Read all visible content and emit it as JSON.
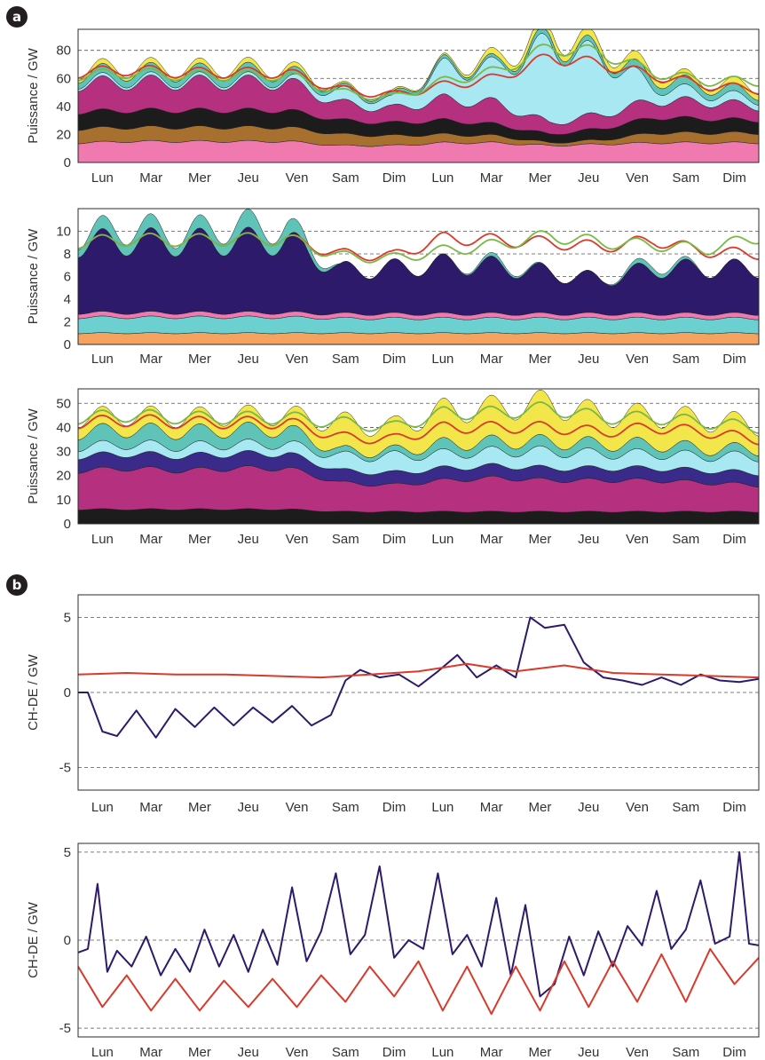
{
  "figure": {
    "panel_a_label": "a",
    "panel_b_label": "b"
  },
  "day_labels": [
    "Lun",
    "Mar",
    "Mer",
    "Jeu",
    "Ven",
    "Sam",
    "Dim",
    "Lun",
    "Mar",
    "Mer",
    "Jeu",
    "Ven",
    "Sam",
    "Dim"
  ],
  "chart_data": [
    {
      "id": "a1",
      "type": "area",
      "ylabel": "Puissance / GW",
      "ylim": [
        0,
        95
      ],
      "yticks": [
        0,
        20,
        40,
        60,
        80
      ],
      "xlim": [
        0,
        14
      ],
      "grid": "horizontal dashed",
      "stack_colors": [
        "#f07ab0",
        "#a8702e",
        "#1c1c1c",
        "#b5307e",
        "#a8e8f2",
        "#5fc3b8",
        "#f2e64a"
      ],
      "stack": [
        {
          "color": "#f07ab0",
          "values": [
            14,
            15,
            15,
            15,
            15,
            12,
            12,
            14,
            14,
            12,
            13,
            14,
            14,
            14
          ]
        },
        {
          "color": "#a8702e",
          "values": [
            10,
            10,
            10,
            10,
            10,
            8,
            7,
            6,
            5,
            2,
            3,
            7,
            7,
            7
          ]
        },
        {
          "color": "#1c1c1c",
          "values": [
            12,
            12,
            12,
            12,
            12,
            10,
            9,
            10,
            8,
            6,
            8,
            11,
            10,
            9
          ]
        },
        {
          "color": "#b5307e",
          "values": [
            20,
            20,
            20,
            20,
            20,
            12,
            10,
            15,
            15,
            8,
            10,
            12,
            12,
            10
          ]
        },
        {
          "color": "#a8e8f2",
          "values": [
            2,
            2,
            2,
            2,
            2,
            8,
            6,
            22,
            25,
            55,
            40,
            10,
            6,
            5
          ]
        },
        {
          "color": "#5fc3b8",
          "values": [
            5,
            6,
            5,
            6,
            5,
            2,
            2,
            2,
            2,
            4,
            3,
            6,
            5,
            4
          ]
        },
        {
          "color": "#f2e64a",
          "values": [
            3,
            3,
            3,
            3,
            3,
            1,
            1,
            1,
            4,
            6,
            5,
            5,
            3,
            5
          ]
        }
      ],
      "lines": [
        {
          "color": "#d93a2b",
          "values": [
            64,
            66,
            64,
            64,
            64,
            52,
            48,
            55,
            60,
            75,
            70,
            62,
            55,
            52
          ]
        },
        {
          "color": "#7bb848",
          "values": [
            62,
            64,
            62,
            62,
            62,
            50,
            46,
            58,
            65,
            82,
            78,
            64,
            58,
            58
          ]
        }
      ]
    },
    {
      "id": "a2",
      "type": "area",
      "ylabel": "Puissance / GW",
      "ylim": [
        0,
        12
      ],
      "yticks": [
        0,
        2,
        4,
        6,
        8,
        10
      ],
      "xlim": [
        0,
        14
      ],
      "grid": "horizontal dashed",
      "stack": [
        {
          "color": "#f4a460",
          "values": [
            1,
            1,
            1,
            1,
            1,
            1,
            1,
            1,
            1,
            1,
            1,
            1,
            1,
            1
          ]
        },
        {
          "color": "#6ccfd0",
          "values": [
            1.4,
            1.4,
            1.4,
            1.4,
            1.4,
            1.3,
            1.3,
            1.3,
            1.3,
            1.3,
            1.3,
            1.3,
            1.3,
            1.3
          ]
        },
        {
          "color": "#f07ab0",
          "values": [
            0.4,
            0.4,
            0.4,
            0.4,
            0.4,
            0.4,
            0.4,
            0.4,
            0.4,
            0.4,
            0.4,
            0.4,
            0.4,
            0.4
          ]
        },
        {
          "color": "#2e1a6b",
          "values": [
            6.1,
            6.3,
            6.2,
            6.3,
            6.3,
            3.8,
            4,
            4.4,
            4.2,
            3.6,
            3,
            4,
            4,
            4
          ]
        },
        {
          "color": "#5fc3b8",
          "values": [
            0.8,
            1.2,
            0.8,
            1.4,
            1.2,
            0,
            0,
            0,
            0.3,
            0,
            0,
            0.5,
            0,
            0
          ]
        }
      ],
      "lines": [
        {
          "color": "#d93a2b",
          "values": [
            9,
            9.3,
            9.2,
            9.3,
            9.3,
            8.0,
            7.8,
            9.4,
            9.2,
            9.0,
            8.6,
            9.2,
            8.2,
            8.0
          ]
        },
        {
          "color": "#7bb848",
          "values": [
            9,
            9.3,
            9.2,
            9.3,
            9.3,
            7.8,
            7.6,
            8.3,
            8.8,
            9.6,
            9.0,
            8.8,
            8.4,
            9.5
          ]
        }
      ]
    },
    {
      "id": "a3",
      "type": "area",
      "ylabel": "Puissance / GW",
      "ylim": [
        0,
        56
      ],
      "yticks": [
        0,
        10,
        20,
        30,
        40,
        50
      ],
      "xlim": [
        0,
        14
      ],
      "grid": "horizontal dashed",
      "stack": [
        {
          "color": "#1c1c1c",
          "values": [
            6,
            6,
            6,
            6,
            6,
            5,
            5,
            5,
            5,
            5,
            5,
            5,
            5,
            5
          ]
        },
        {
          "color": "#b5307e",
          "values": [
            16,
            17,
            16,
            17,
            17,
            12,
            11,
            13,
            14,
            13,
            13,
            13,
            12,
            11
          ]
        },
        {
          "color": "#3a2a8a",
          "values": [
            6,
            6,
            6,
            6,
            6,
            5,
            5,
            5,
            5,
            5,
            5,
            5,
            5,
            5
          ]
        },
        {
          "color": "#a8e8f2",
          "values": [
            4,
            4,
            4,
            4,
            4,
            6,
            7,
            6,
            6,
            7,
            6,
            6,
            6,
            7
          ]
        },
        {
          "color": "#5fc3b8",
          "values": [
            6,
            6,
            6,
            6,
            6,
            2,
            2,
            4,
            4,
            4,
            4,
            4,
            3,
            3
          ]
        },
        {
          "color": "#f2e64a",
          "values": [
            6,
            6,
            6,
            6,
            6,
            12,
            10,
            14,
            14,
            16,
            12,
            12,
            12,
            10
          ]
        }
      ],
      "lines": [
        {
          "color": "#d93a2b",
          "values": [
            42,
            43,
            42,
            42,
            42,
            36,
            35,
            40,
            40,
            40,
            38,
            40,
            38,
            35
          ]
        },
        {
          "color": "#7bb848",
          "values": [
            44,
            45,
            44,
            44,
            44,
            42,
            40,
            46,
            46,
            48,
            44,
            44,
            42,
            40
          ]
        }
      ]
    },
    {
      "id": "b1",
      "type": "line",
      "ylabel": "CH-DE / GW",
      "ylim": [
        -6.5,
        6.5
      ],
      "yticks": [
        -5,
        0,
        5
      ],
      "xlim": [
        0,
        14
      ],
      "grid": "horizontal dashed",
      "series": [
        {
          "color": "#2e1a6b",
          "x": [
            0,
            0.2,
            0.5,
            0.8,
            1.2,
            1.6,
            2.0,
            2.4,
            2.8,
            3.2,
            3.6,
            4.0,
            4.4,
            4.8,
            5.2,
            5.5,
            5.8,
            6.2,
            6.6,
            7.0,
            7.4,
            7.8,
            8.2,
            8.6,
            9.0,
            9.3,
            9.6,
            10.0,
            10.4,
            10.8,
            11.2,
            11.6,
            12.0,
            12.4,
            12.8,
            13.2,
            13.6,
            14.0
          ],
          "y": [
            0,
            0,
            -2.6,
            -2.9,
            -1.2,
            -3.0,
            -1.1,
            -2.3,
            -1.0,
            -2.2,
            -1.0,
            -2.0,
            -0.9,
            -2.2,
            -1.5,
            0.8,
            1.5,
            1.0,
            1.2,
            0.4,
            1.4,
            2.5,
            1.0,
            1.8,
            1.0,
            5.0,
            4.3,
            4.5,
            2.0,
            1.0,
            0.8,
            0.5,
            1.0,
            0.5,
            1.2,
            0.8,
            0.7,
            0.9
          ]
        },
        {
          "color": "#d93a2b",
          "x": [
            0,
            1,
            2,
            3,
            4,
            5,
            6,
            7,
            8,
            9,
            10,
            11,
            12,
            13,
            14
          ],
          "y": [
            1.2,
            1.3,
            1.2,
            1.2,
            1.1,
            1.0,
            1.2,
            1.4,
            1.9,
            1.4,
            1.8,
            1.3,
            1.2,
            1.1,
            1.0
          ]
        }
      ]
    },
    {
      "id": "b2",
      "type": "line",
      "ylabel": "CH-DE / GW",
      "ylim": [
        -5.5,
        5.5
      ],
      "yticks": [
        -5,
        0,
        5
      ],
      "xlim": [
        0,
        14
      ],
      "grid": "horizontal dashed",
      "series": [
        {
          "color": "#2e1a6b",
          "x": [
            0,
            0.2,
            0.4,
            0.6,
            0.8,
            1.1,
            1.4,
            1.7,
            2.0,
            2.3,
            2.6,
            2.9,
            3.2,
            3.5,
            3.8,
            4.1,
            4.4,
            4.7,
            5.0,
            5.3,
            5.6,
            5.9,
            6.2,
            6.5,
            6.8,
            7.1,
            7.4,
            7.7,
            8.0,
            8.3,
            8.6,
            8.9,
            9.2,
            9.5,
            9.8,
            10.1,
            10.4,
            10.7,
            11.0,
            11.3,
            11.6,
            11.9,
            12.2,
            12.5,
            12.8,
            13.1,
            13.4,
            13.6,
            13.8,
            14.0
          ],
          "y": [
            -0.7,
            -0.5,
            3.2,
            -1.8,
            -0.6,
            -1.5,
            0.2,
            -2.0,
            -0.5,
            -1.8,
            0.6,
            -1.5,
            0.3,
            -1.8,
            0.6,
            -1.4,
            3.0,
            -1.2,
            0.5,
            3.8,
            -0.8,
            0.3,
            4.2,
            -1.0,
            0.0,
            -0.5,
            3.8,
            -0.8,
            0.3,
            -1.5,
            2.4,
            -2.0,
            2.0,
            -3.2,
            -2.5,
            0.2,
            -2.0,
            0.5,
            -1.5,
            0.8,
            -0.3,
            2.8,
            -0.5,
            0.6,
            3.4,
            -0.2,
            0.2,
            5.0,
            -0.2,
            -0.3
          ]
        },
        {
          "color": "#d93a2b",
          "x": [
            0,
            0.5,
            1.0,
            1.5,
            2.0,
            2.5,
            3.0,
            3.5,
            4.0,
            4.5,
            5.0,
            5.5,
            6.0,
            6.5,
            7.0,
            7.5,
            8.0,
            8.5,
            9.0,
            9.5,
            10.0,
            10.5,
            11.0,
            11.5,
            12.0,
            12.5,
            13.0,
            13.5,
            14.0
          ],
          "y": [
            -1.5,
            -3.8,
            -2.0,
            -4.0,
            -2.2,
            -4.0,
            -2.3,
            -3.8,
            -2.2,
            -3.8,
            -2.0,
            -3.5,
            -1.5,
            -3.2,
            -1.2,
            -4.0,
            -1.5,
            -4.2,
            -1.5,
            -4.0,
            -1.2,
            -3.8,
            -1.2,
            -3.5,
            -0.8,
            -3.5,
            -0.5,
            -2.5,
            -1.0
          ]
        }
      ]
    }
  ]
}
